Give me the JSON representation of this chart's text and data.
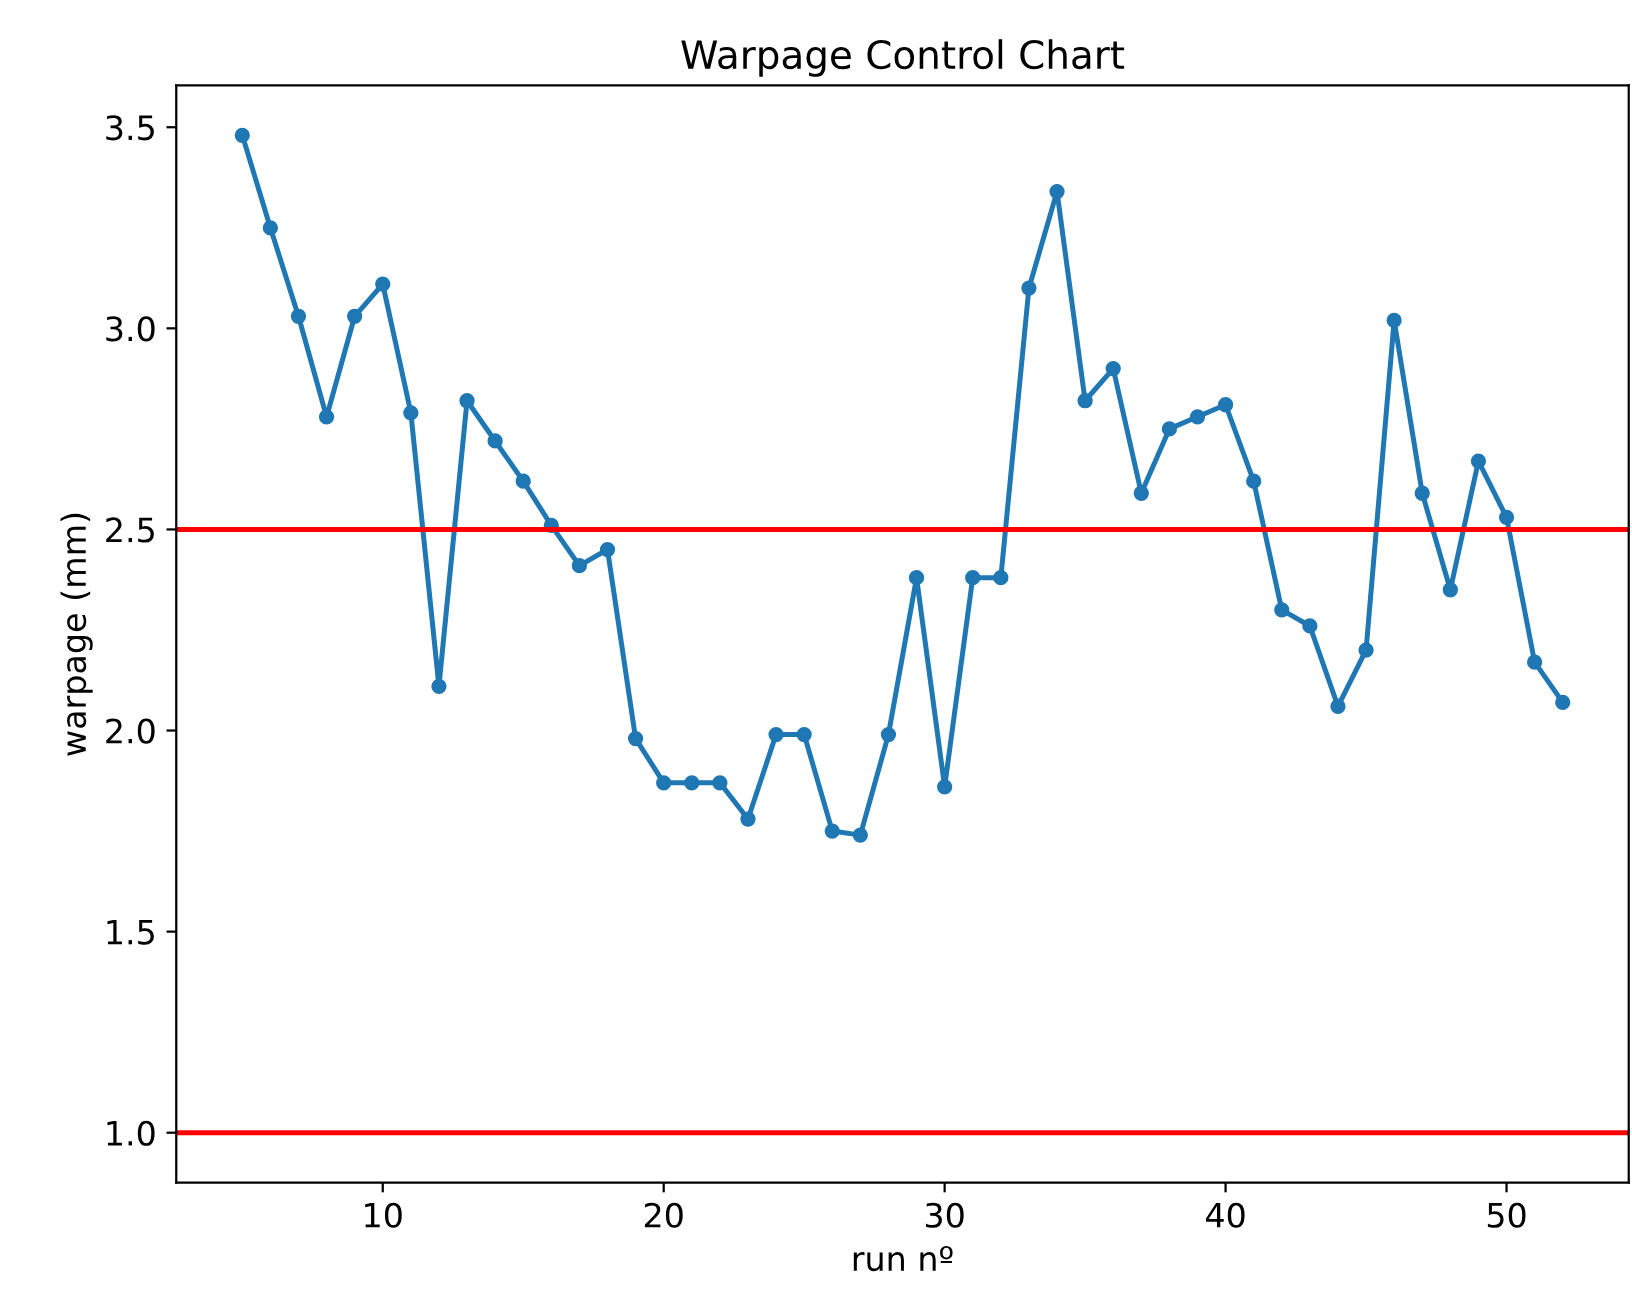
{
  "chart_data": {
    "type": "line",
    "title": "Warpage Control Chart",
    "xlabel": "run nº",
    "ylabel": "warpage (mm)",
    "x": [
      5,
      6,
      7,
      8,
      9,
      10,
      11,
      12,
      13,
      14,
      15,
      16,
      17,
      18,
      19,
      20,
      21,
      22,
      23,
      24,
      25,
      26,
      27,
      28,
      29,
      30,
      31,
      32,
      33,
      34,
      35,
      36,
      37,
      38,
      39,
      40,
      41,
      42,
      43,
      44,
      45,
      46,
      47,
      48,
      49,
      50,
      51,
      52
    ],
    "series": [
      {
        "color": "#1f77b4",
        "values": [
          3.48,
          3.25,
          3.03,
          2.78,
          3.03,
          3.11,
          2.79,
          2.11,
          2.82,
          2.72,
          2.62,
          2.51,
          2.41,
          2.45,
          1.98,
          1.87,
          1.87,
          1.87,
          1.78,
          1.99,
          1.99,
          1.75,
          1.74,
          1.99,
          2.38,
          1.86,
          2.38,
          2.38,
          3.1,
          3.34,
          2.82,
          2.9,
          2.59,
          2.75,
          2.78,
          2.81,
          2.62,
          2.3,
          2.26,
          2.06,
          2.2,
          3.02,
          2.59,
          2.35,
          2.67,
          2.53,
          2.17,
          2.07
        ]
      }
    ],
    "marker": "circle",
    "line_style": "solid",
    "ref_lines": [
      {
        "axis": "y",
        "value": 2.5,
        "color": "#ff0000"
      },
      {
        "axis": "y",
        "value": 1.0,
        "color": "#ff0000"
      }
    ],
    "xlim": [
      2.65,
      54.35
    ],
    "ylim": [
      0.876,
      3.604
    ],
    "xticks": [
      10,
      20,
      30,
      40,
      50
    ],
    "yticks": [
      {
        "value": 1.0,
        "label": "1.0"
      },
      {
        "value": 1.5,
        "label": "1.5"
      },
      {
        "value": 2.0,
        "label": "2.0"
      },
      {
        "value": 2.5,
        "label": "2.5"
      },
      {
        "value": 3.0,
        "label": "3.0"
      },
      {
        "value": 3.5,
        "label": "3.5"
      }
    ],
    "grid": false,
    "legend": false
  }
}
